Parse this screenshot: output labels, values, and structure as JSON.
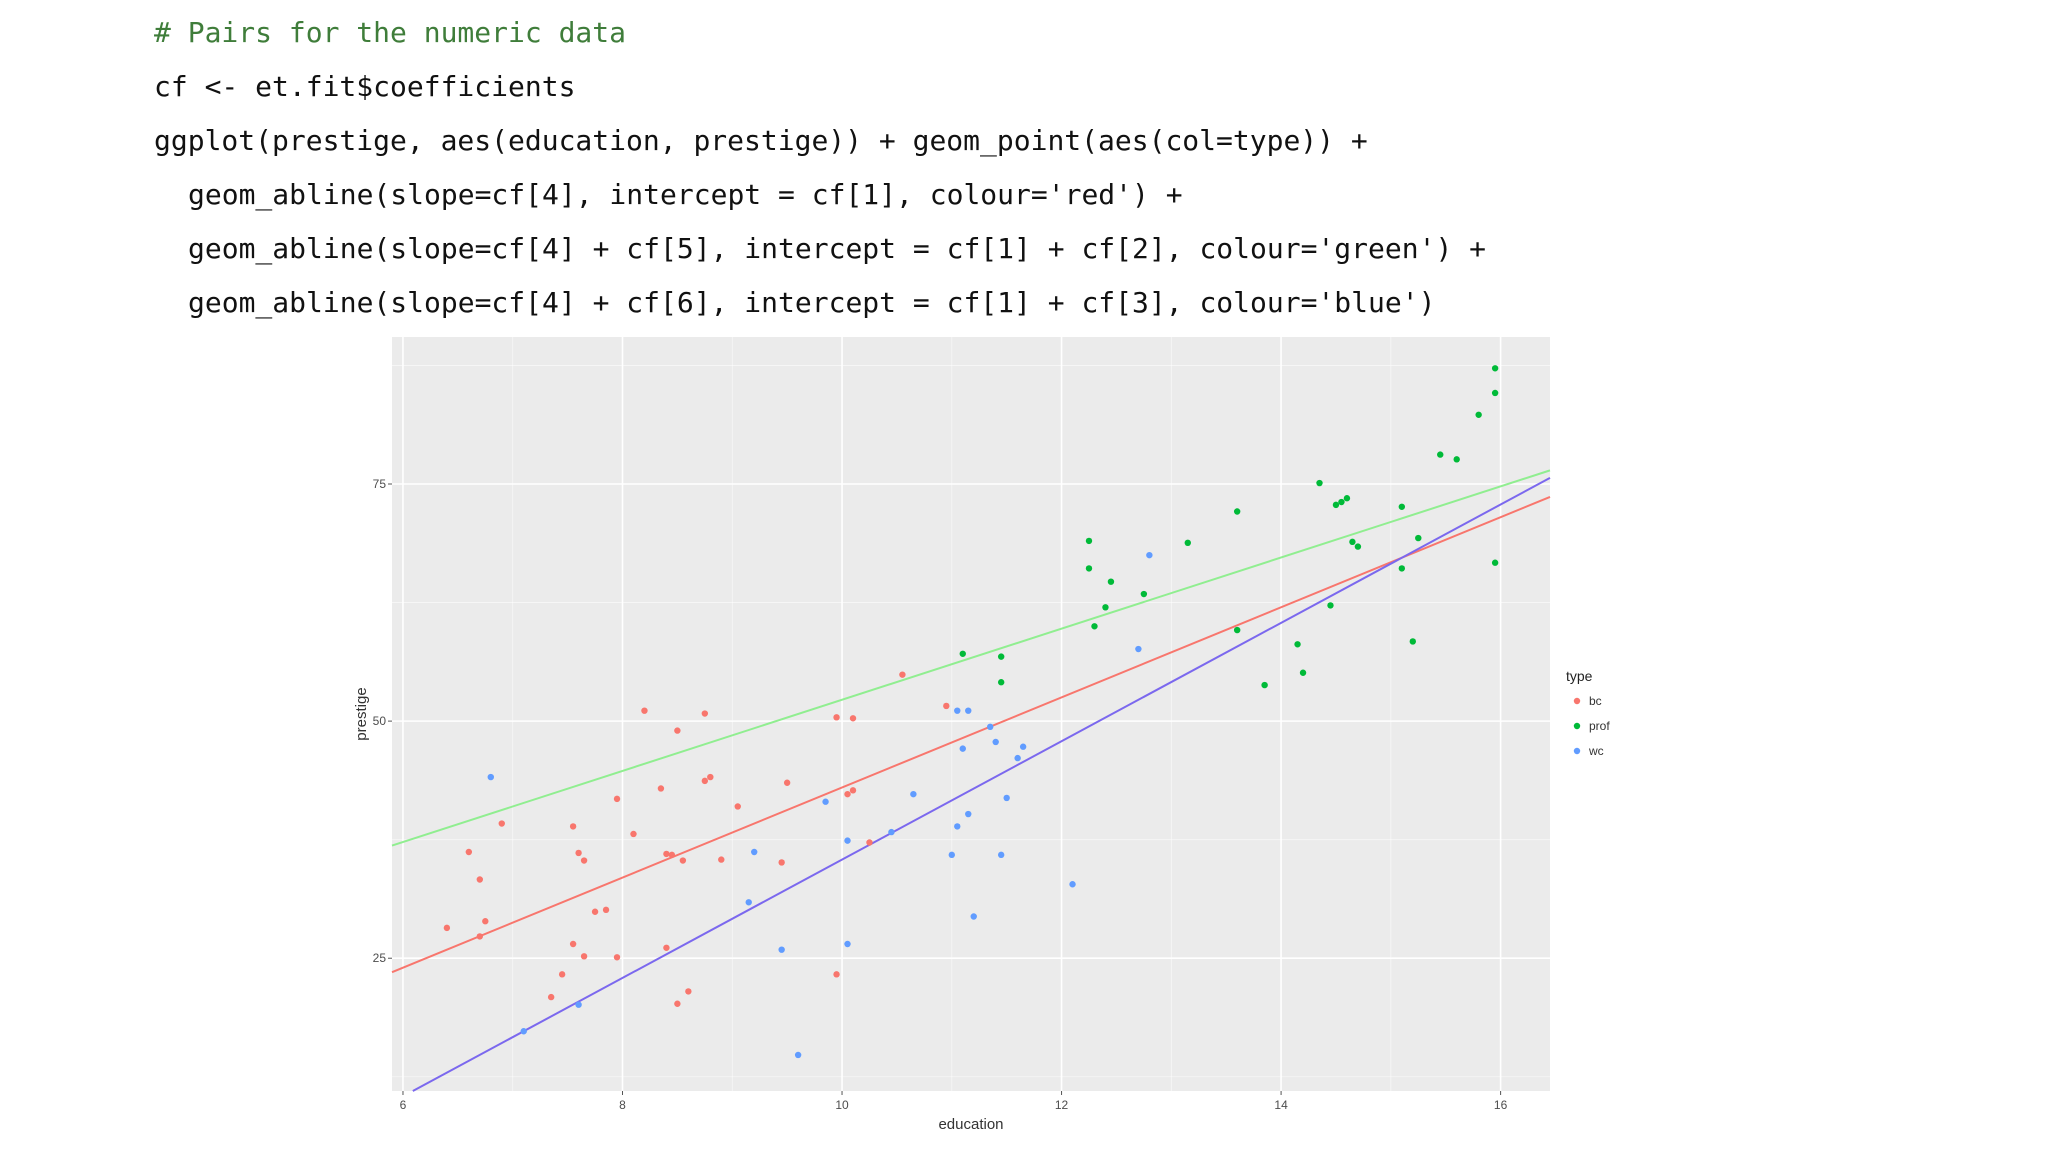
{
  "code": {
    "comment": "# Pairs for the numeric data",
    "line1": "cf <- et.fit$coefficients",
    "line2": "ggplot(prestige, aes(education, prestige)) + geom_point(aes(col=type)) +",
    "line3": "geom_abline(slope=cf[4], intercept = cf[1], colour='red') +",
    "line4": "geom_abline(slope=cf[4] + cf[5], intercept = cf[1] + cf[2], colour='green') +",
    "line5": "geom_abline(slope=cf[4] + cf[6], intercept = cf[1] + cf[3], colour='blue')"
  },
  "chart_data": {
    "type": "scatter",
    "xlabel": "education",
    "ylabel": "prestige",
    "xlim": [
      5.9,
      16.45
    ],
    "ylim": [
      11,
      90.5
    ],
    "xticks": [
      6,
      8,
      10,
      12,
      14,
      16
    ],
    "yticks": [
      25,
      50,
      75
    ],
    "grid": true,
    "legend": {
      "title": "type",
      "position": "right"
    },
    "colors": {
      "bc": "#f8766d",
      "prof": "#00ba38",
      "wc": "#619cff",
      "panel": "#ebebeb",
      "grid": "#ffffff"
    },
    "lines": [
      {
        "colour": "red",
        "hex": "#f8766d",
        "slope": 4.75,
        "intercept": -4.5
      },
      {
        "colour": "green",
        "hex": "#90ee90",
        "slope": 3.75,
        "intercept": 14.75
      },
      {
        "colour": "blue",
        "hex": "#7b68ee",
        "slope": 6.24,
        "intercept": -27.0
      }
    ],
    "series": [
      {
        "name": "bc",
        "points": [
          [
            6.4,
            28.2
          ],
          [
            6.6,
            36.2
          ],
          [
            6.7,
            33.3
          ],
          [
            6.7,
            27.3
          ],
          [
            6.75,
            28.9
          ],
          [
            6.9,
            39.2
          ],
          [
            7.35,
            20.9
          ],
          [
            7.45,
            23.3
          ],
          [
            7.55,
            26.5
          ],
          [
            7.55,
            38.9
          ],
          [
            7.6,
            36.1
          ],
          [
            7.65,
            25.2
          ],
          [
            7.65,
            35.3
          ],
          [
            7.75,
            29.9
          ],
          [
            7.85,
            30.1
          ],
          [
            7.95,
            41.8
          ],
          [
            7.95,
            25.1
          ],
          [
            8.1,
            38.1
          ],
          [
            8.2,
            51.1
          ],
          [
            8.35,
            42.9
          ],
          [
            8.4,
            36.0
          ],
          [
            8.4,
            26.1
          ],
          [
            8.45,
            35.9
          ],
          [
            8.5,
            20.2
          ],
          [
            8.5,
            49.0
          ],
          [
            8.55,
            35.3
          ],
          [
            8.6,
            21.5
          ],
          [
            8.75,
            50.8
          ],
          [
            8.75,
            43.7
          ],
          [
            8.8,
            44.1
          ],
          [
            8.9,
            35.4
          ],
          [
            9.05,
            41.0
          ],
          [
            9.45,
            35.1
          ],
          [
            9.5,
            43.5
          ],
          [
            9.95,
            23.3
          ],
          [
            9.95,
            50.4
          ],
          [
            10.05,
            42.3
          ],
          [
            10.1,
            42.7
          ],
          [
            10.1,
            50.3
          ],
          [
            10.25,
            37.2
          ],
          [
            10.55,
            54.9
          ],
          [
            10.95,
            51.6
          ]
        ]
      },
      {
        "name": "prof",
        "points": [
          [
            11.1,
            57.1
          ],
          [
            11.45,
            56.8
          ],
          [
            11.45,
            54.1
          ],
          [
            12.25,
            69.0
          ],
          [
            12.25,
            66.1
          ],
          [
            12.3,
            60.0
          ],
          [
            12.4,
            62.0
          ],
          [
            12.45,
            64.7
          ],
          [
            12.75,
            63.4
          ],
          [
            13.15,
            68.8
          ],
          [
            13.6,
            72.1
          ],
          [
            13.6,
            59.6
          ],
          [
            13.85,
            53.8
          ],
          [
            14.15,
            58.1
          ],
          [
            14.2,
            55.1
          ],
          [
            14.35,
            75.1
          ],
          [
            14.45,
            62.2
          ],
          [
            14.5,
            72.8
          ],
          [
            14.55,
            73.1
          ],
          [
            14.6,
            73.5
          ],
          [
            14.65,
            68.9
          ],
          [
            14.7,
            68.4
          ],
          [
            15.1,
            72.6
          ],
          [
            15.1,
            66.1
          ],
          [
            15.2,
            58.4
          ],
          [
            15.25,
            69.3
          ],
          [
            15.45,
            78.1
          ],
          [
            15.6,
            77.6
          ],
          [
            15.8,
            82.3
          ],
          [
            15.95,
            66.7
          ],
          [
            15.95,
            84.6
          ],
          [
            15.95,
            87.2
          ]
        ]
      },
      {
        "name": "wc",
        "points": [
          [
            6.8,
            44.1
          ],
          [
            7.1,
            17.3
          ],
          [
            7.6,
            20.1
          ],
          [
            9.15,
            30.9
          ],
          [
            9.2,
            36.2
          ],
          [
            9.45,
            25.9
          ],
          [
            9.6,
            14.8
          ],
          [
            9.85,
            41.5
          ],
          [
            10.05,
            26.5
          ],
          [
            10.05,
            37.4
          ],
          [
            10.45,
            38.3
          ],
          [
            10.65,
            42.3
          ],
          [
            11.0,
            35.9
          ],
          [
            11.05,
            51.1
          ],
          [
            11.05,
            38.9
          ],
          [
            11.1,
            47.1
          ],
          [
            11.15,
            40.2
          ],
          [
            11.15,
            51.1
          ],
          [
            11.2,
            29.4
          ],
          [
            11.35,
            49.4
          ],
          [
            11.4,
            47.8
          ],
          [
            11.45,
            35.9
          ],
          [
            11.5,
            41.9
          ],
          [
            11.6,
            46.1
          ],
          [
            11.65,
            47.3
          ],
          [
            12.1,
            32.8
          ],
          [
            12.7,
            57.6
          ],
          [
            12.8,
            67.5
          ]
        ]
      }
    ]
  }
}
